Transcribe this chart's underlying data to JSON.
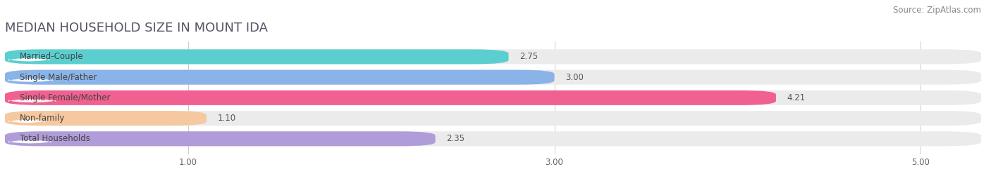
{
  "title": "MEDIAN HOUSEHOLD SIZE IN MOUNT IDA",
  "source": "Source: ZipAtlas.com",
  "categories": [
    "Married-Couple",
    "Single Male/Father",
    "Single Female/Mother",
    "Non-family",
    "Total Households"
  ],
  "values": [
    2.75,
    3.0,
    4.21,
    1.1,
    2.35
  ],
  "bar_colors": [
    "#5bcfcf",
    "#8ab4e8",
    "#f06090",
    "#f5c8a0",
    "#b09cd8"
  ],
  "bar_bg_color": "#ebebeb",
  "xlim": [
    0,
    5.33
  ],
  "xmin": 0,
  "xmax": 5.33,
  "xticks": [
    1.0,
    3.0,
    5.0
  ],
  "title_fontsize": 13,
  "source_fontsize": 8.5,
  "label_fontsize": 8.5,
  "value_fontsize": 8.5,
  "background_color": "#ffffff",
  "bar_gap": 0.18,
  "bar_height": 0.72
}
